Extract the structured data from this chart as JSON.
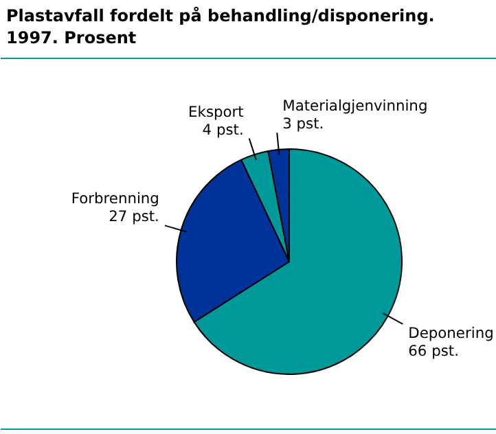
{
  "chart_data": {
    "type": "pie",
    "title": "Plastavfall fordelt på behandling/disponering. 1997. Prosent",
    "categories": [
      "Deponering",
      "Forbrenning",
      "Eksport",
      "Materialgjenvinning"
    ],
    "values": [
      66,
      27,
      4,
      3
    ],
    "colors": [
      "#009999",
      "#003399",
      "#009999",
      "#003399"
    ],
    "value_labels": [
      "66 pst.",
      "27 pst.",
      "4 pst.",
      "3 pst."
    ]
  }
}
